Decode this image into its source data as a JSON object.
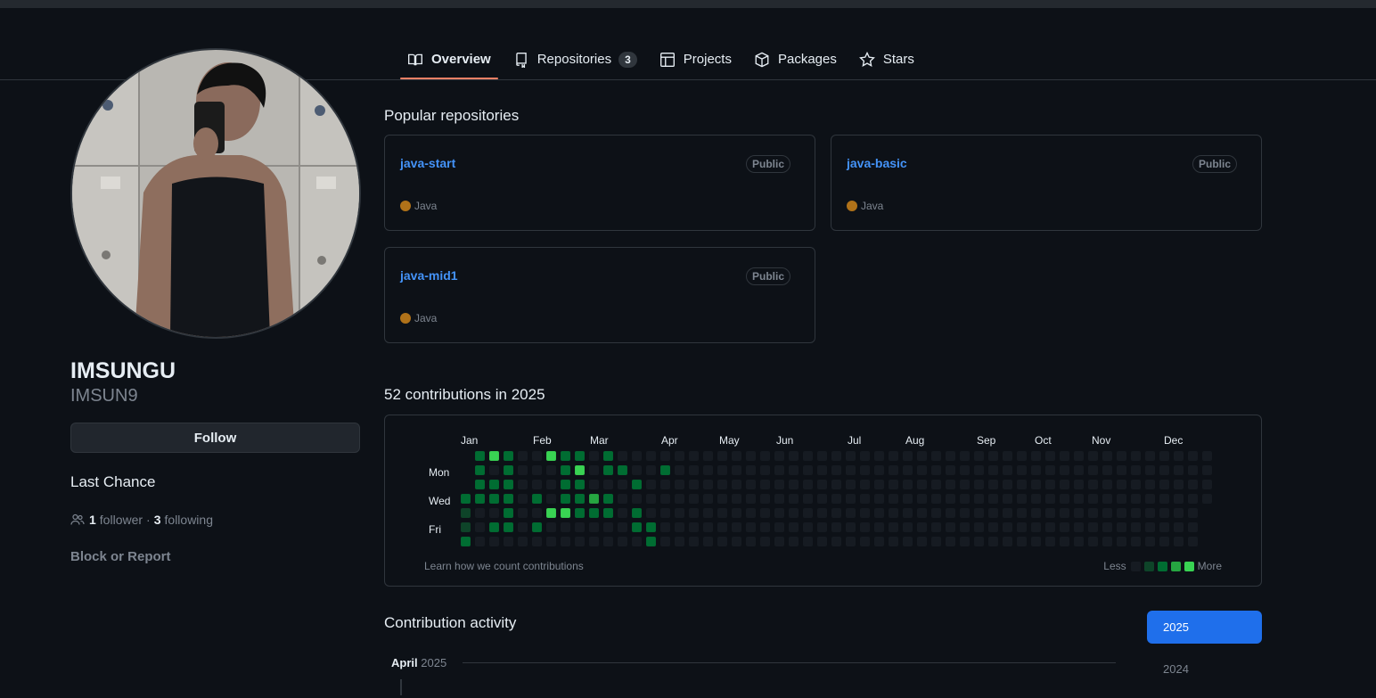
{
  "tabs": [
    {
      "label": "Overview",
      "icon": "book-icon",
      "active": true
    },
    {
      "label": "Repositories",
      "icon": "repo-icon",
      "count": "3"
    },
    {
      "label": "Projects",
      "icon": "table-icon"
    },
    {
      "label": "Packages",
      "icon": "package-icon"
    },
    {
      "label": "Stars",
      "icon": "star-icon"
    }
  ],
  "profile": {
    "name": "IMSUNGU",
    "login": "IMSUN9",
    "follow_label": "Follow",
    "bio": "Last Chance",
    "followers_count": "1",
    "followers_label": "follower",
    "separator": "·",
    "following_count": "3",
    "following_label": "following",
    "block_label": "Block or Report"
  },
  "popular": {
    "title": "Popular repositories",
    "repos": [
      {
        "name": "java-start",
        "visibility": "Public",
        "language": "Java",
        "lang_color": "#b07219"
      },
      {
        "name": "java-basic",
        "visibility": "Public",
        "language": "Java",
        "lang_color": "#b07219"
      },
      {
        "name": "java-mid1",
        "visibility": "Public",
        "language": "Java",
        "lang_color": "#b07219"
      }
    ]
  },
  "contributions": {
    "title": "52 contributions in 2025",
    "months": [
      "Jan",
      "Feb",
      "Mar",
      "Apr",
      "May",
      "Jun",
      "Jul",
      "Aug",
      "Sep",
      "Oct",
      "Nov",
      "Dec"
    ],
    "day_labels": [
      "Mon",
      "Wed",
      "Fri"
    ],
    "learn_label": "Learn how we count contributions",
    "legend_less": "Less",
    "legend_more": "More",
    "level_colors": [
      "#161b22",
      "#0e4429",
      "#006d32",
      "#26a641",
      "#39d353"
    ]
  },
  "activity": {
    "title": "Contribution activity",
    "month": "April",
    "year": "2025",
    "years": [
      "2025",
      "2024"
    ]
  }
}
